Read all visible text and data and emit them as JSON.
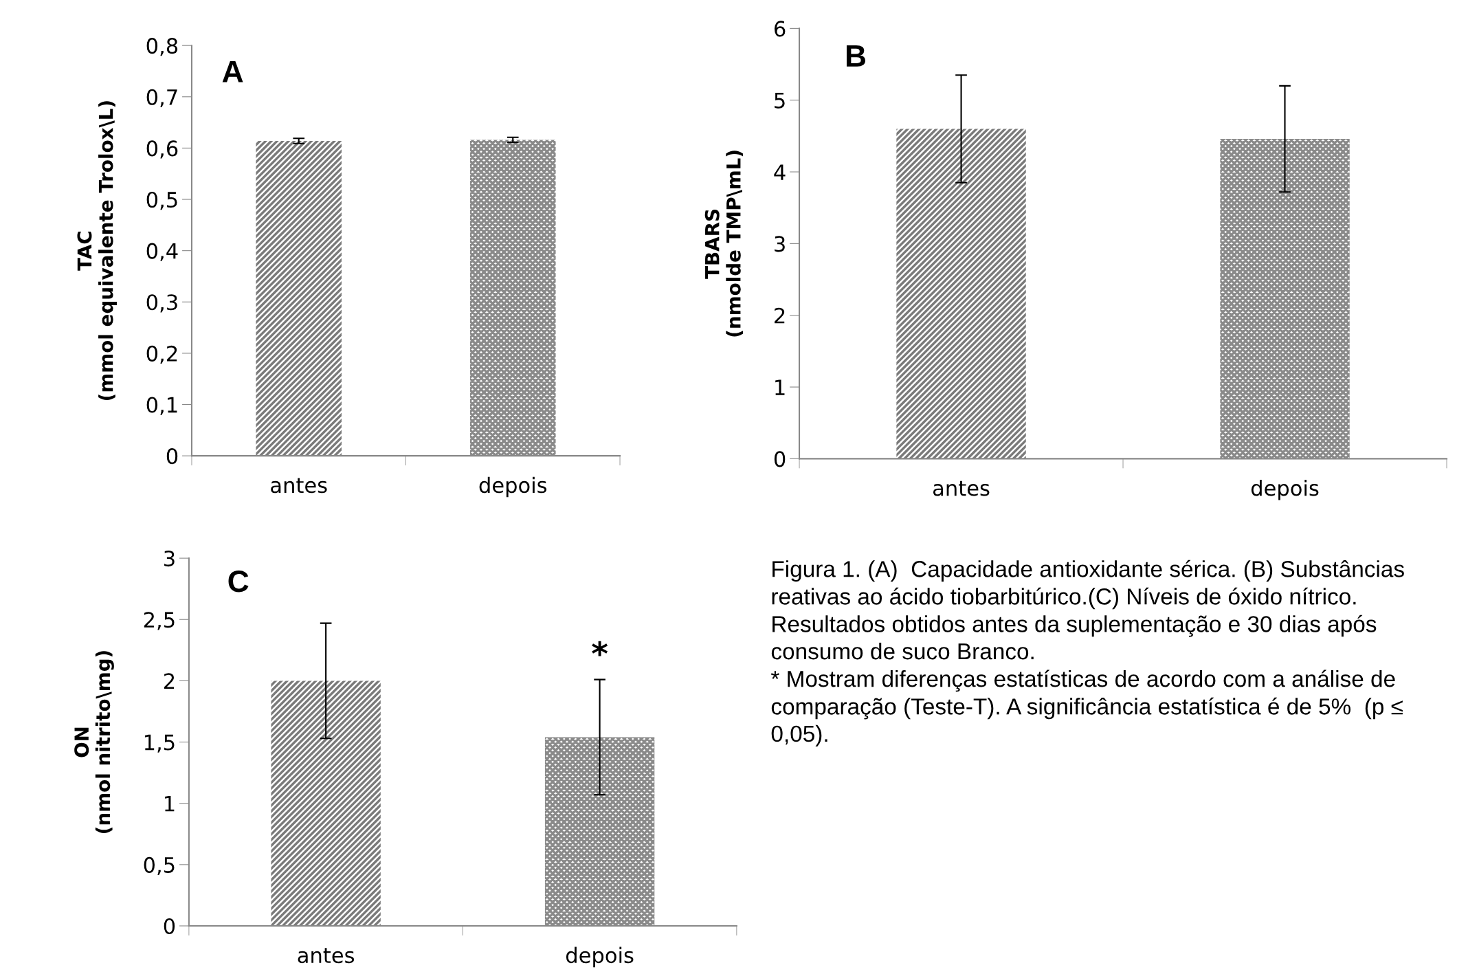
{
  "chart_data": [
    {
      "type": "bar",
      "ylabel": "TAC\n(mmol equivalente Trolox\\L)",
      "categories": [
        "antes",
        "depois"
      ],
      "values": [
        0.614,
        0.616
      ],
      "errors": [
        0.005,
        0.005
      ],
      "colors": [
        "#7a7a7a",
        "#8a8a8a"
      ],
      "ylim": [
        0,
        0.8
      ],
      "yticks": [
        {
          "value": 0,
          "label": "0"
        },
        {
          "value": 0.1,
          "label": "0,1"
        },
        {
          "value": 0.2,
          "label": "0,2"
        },
        {
          "value": 0.3,
          "label": "0,3"
        },
        {
          "value": 0.4,
          "label": "0,4"
        },
        {
          "value": 0.5,
          "label": "0,5"
        },
        {
          "value": 0.6,
          "label": "0,6"
        },
        {
          "value": 0.7,
          "label": "0,7"
        },
        {
          "value": 0.8,
          "label": "0,8"
        }
      ],
      "grid": false,
      "annotations": [
        "A"
      ]
    },
    {
      "type": "bar",
      "ylabel": "TBARS\n(nmolde TMP\\mL)",
      "categories": [
        "antes",
        "depois"
      ],
      "values": [
        4.6,
        4.46
      ],
      "errors": [
        0.75,
        0.74
      ],
      "colors": [
        "#7a7a7a",
        "#8a8a8a"
      ],
      "ylim": [
        0,
        6
      ],
      "yticks": [
        0,
        1,
        2,
        3,
        4,
        5,
        6
      ],
      "grid": false,
      "annotations": [
        "B"
      ]
    },
    {
      "type": "bar",
      "ylabel": "ON\n(nmol nitrito\\mg)",
      "categories": [
        "antes",
        "depois"
      ],
      "values": [
        2.0,
        1.54
      ],
      "errors": [
        0.47,
        0.47
      ],
      "colors": [
        "#7a7a7a",
        "#8a8a8a"
      ],
      "ylim": [
        0,
        3
      ],
      "yticks": [
        {
          "value": 0,
          "label": "0"
        },
        {
          "value": 0.5,
          "label": "0,5"
        },
        {
          "value": 1,
          "label": "1"
        },
        {
          "value": 1.5,
          "label": "1,5"
        },
        {
          "value": 2,
          "label": "2"
        },
        {
          "value": 2.5,
          "label": "2,5"
        },
        {
          "value": 3,
          "label": "3"
        }
      ],
      "grid": false,
      "annotations": [
        "C",
        {
          "text": "*",
          "x": "depois",
          "y": 2.01
        },
        "Figura 1. (A)  Capacidade antioxidante sérica. (B) Substâncias reativas ao ácido tiobarbitúrico.(C) Níveis de óxido nítrico. Resultados obtidos antes da suplementação e 30 dias após consumo de suco Branco.\n* Mostram diferenças estatísticas de acordo com a análise de comparação (Teste-T). A significância estatística é de 5%  (p ≤ 0,05)."
      ]
    }
  ]
}
